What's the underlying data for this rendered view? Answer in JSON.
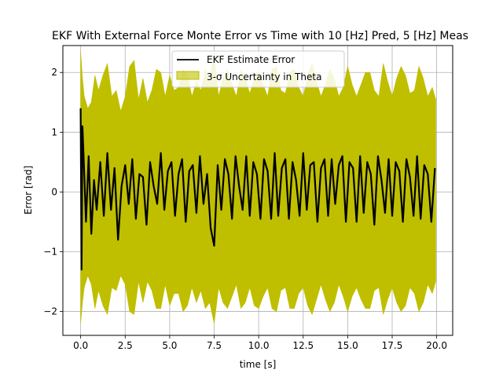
{
  "chart_data": {
    "type": "area",
    "title": "EKF With External Force Monte Error vs Time  with 10 [Hz] Pred, 5 [Hz] Meas",
    "xlabel": "time [s]",
    "ylabel": "Error [rad]",
    "xlim": [
      -1.0,
      20.9
    ],
    "ylim": [
      -2.4,
      2.45
    ],
    "xticks": [
      0.0,
      2.5,
      5.0,
      7.5,
      10.0,
      12.5,
      15.0,
      17.5,
      20.0
    ],
    "xtick_labels": [
      "0.0",
      "2.5",
      "5.0",
      "7.5",
      "10.0",
      "12.5",
      "15.0",
      "17.5",
      "20.0"
    ],
    "yticks": [
      -2,
      -1,
      0,
      1,
      2
    ],
    "ytick_labels": [
      "−2",
      "−1",
      "0",
      "1",
      "2"
    ],
    "grid": true,
    "legend_position": "top-center",
    "series": [
      {
        "name": "EKF Estimate Error",
        "kind": "line",
        "color": "#000000",
        "x": [
          0.0,
          0.05,
          0.1,
          0.2,
          0.3,
          0.45,
          0.6,
          0.75,
          0.9,
          1.1,
          1.3,
          1.5,
          1.7,
          1.9,
          2.1,
          2.3,
          2.5,
          2.7,
          2.9,
          3.1,
          3.3,
          3.5,
          3.7,
          3.9,
          4.1,
          4.3,
          4.5,
          4.7,
          4.9,
          5.1,
          5.3,
          5.5,
          5.7,
          5.9,
          6.1,
          6.3,
          6.5,
          6.7,
          6.9,
          7.1,
          7.3,
          7.5,
          7.7,
          7.9,
          8.1,
          8.3,
          8.5,
          8.7,
          8.9,
          9.1,
          9.3,
          9.5,
          9.7,
          9.9,
          10.1,
          10.3,
          10.5,
          10.7,
          10.9,
          11.1,
          11.3,
          11.5,
          11.7,
          11.9,
          12.1,
          12.3,
          12.5,
          12.7,
          12.9,
          13.1,
          13.3,
          13.5,
          13.7,
          13.9,
          14.1,
          14.3,
          14.5,
          14.7,
          14.9,
          15.1,
          15.3,
          15.5,
          15.7,
          15.9,
          16.1,
          16.3,
          16.5,
          16.7,
          16.9,
          17.1,
          17.3,
          17.5,
          17.7,
          17.9,
          18.1,
          18.3,
          18.5,
          18.7,
          18.9,
          19.1,
          19.3,
          19.5,
          19.7,
          19.9
        ],
        "y": [
          1.4,
          -1.3,
          1.1,
          0.3,
          -0.5,
          0.6,
          -0.7,
          0.2,
          -0.3,
          0.5,
          -0.4,
          0.65,
          -0.3,
          0.4,
          -0.8,
          0.1,
          0.45,
          -0.2,
          0.55,
          -0.45,
          0.3,
          0.25,
          -0.55,
          0.5,
          0.1,
          -0.2,
          0.65,
          -0.3,
          0.35,
          0.5,
          -0.4,
          0.3,
          0.55,
          -0.5,
          0.35,
          0.45,
          -0.35,
          0.6,
          -0.2,
          0.3,
          -0.6,
          -0.9,
          0.45,
          -0.3,
          0.55,
          0.3,
          -0.45,
          0.6,
          0.1,
          -0.3,
          0.6,
          -0.4,
          0.5,
          0.3,
          -0.45,
          0.55,
          0.35,
          -0.45,
          0.65,
          -0.4,
          0.4,
          0.55,
          -0.45,
          0.5,
          0.2,
          -0.4,
          0.65,
          -0.3,
          0.45,
          0.5,
          -0.5,
          0.4,
          0.55,
          -0.4,
          0.55,
          -0.2,
          0.45,
          0.6,
          -0.5,
          0.5,
          0.4,
          -0.5,
          0.6,
          -0.35,
          0.5,
          0.3,
          -0.55,
          0.6,
          0.2,
          -0.35,
          0.55,
          -0.4,
          0.5,
          0.35,
          -0.5,
          0.55,
          0.25,
          -0.4,
          0.6,
          -0.45,
          0.45,
          0.3,
          -0.5,
          0.4
        ]
      },
      {
        "name": "3-σ Uncertainty in Theta",
        "kind": "band",
        "color": "#bfbf00",
        "x": [
          0.0,
          0.1,
          0.2,
          0.4,
          0.6,
          0.8,
          1.0,
          1.25,
          1.5,
          1.75,
          2.0,
          2.25,
          2.5,
          2.75,
          3.0,
          3.25,
          3.5,
          3.75,
          4.0,
          4.25,
          4.5,
          4.75,
          5.0,
          5.25,
          5.5,
          5.75,
          6.0,
          6.25,
          6.5,
          6.75,
          7.0,
          7.25,
          7.5,
          7.75,
          8.0,
          8.25,
          8.5,
          8.75,
          9.0,
          9.25,
          9.5,
          9.75,
          10.0,
          10.25,
          10.5,
          10.75,
          11.0,
          11.25,
          11.5,
          11.75,
          12.0,
          12.25,
          12.5,
          12.75,
          13.0,
          13.25,
          13.5,
          13.75,
          14.0,
          14.25,
          14.5,
          14.75,
          15.0,
          15.25,
          15.5,
          15.75,
          16.0,
          16.25,
          16.5,
          16.75,
          17.0,
          17.25,
          17.5,
          17.75,
          18.0,
          18.25,
          18.5,
          18.75,
          19.0,
          19.25,
          19.5,
          19.75,
          19.95
        ],
        "upper": [
          2.35,
          1.9,
          1.6,
          1.4,
          1.5,
          1.95,
          1.7,
          1.95,
          2.15,
          1.6,
          1.7,
          1.35,
          1.6,
          2.1,
          2.2,
          1.55,
          1.9,
          1.5,
          1.7,
          2.05,
          2.0,
          1.6,
          1.95,
          1.7,
          1.75,
          2.05,
          1.95,
          1.6,
          1.85,
          1.7,
          2.05,
          1.9,
          2.3,
          1.6,
          1.9,
          2.05,
          1.8,
          1.6,
          2.05,
          1.9,
          1.65,
          1.9,
          2.0,
          1.8,
          1.6,
          2.05,
          2.1,
          1.7,
          1.65,
          2.0,
          2.05,
          1.75,
          1.6,
          1.95,
          2.15,
          1.85,
          1.6,
          1.8,
          2.05,
          1.9,
          1.6,
          1.75,
          2.1,
          1.8,
          1.6,
          1.8,
          2.0,
          2.0,
          1.7,
          1.6,
          2.15,
          1.85,
          1.6,
          1.9,
          2.1,
          1.95,
          1.65,
          1.7,
          2.1,
          1.9,
          1.6,
          1.75,
          1.55
        ],
        "lower": [
          -2.2,
          -1.85,
          -1.6,
          -1.4,
          -1.55,
          -1.95,
          -1.65,
          -1.9,
          -2.05,
          -1.6,
          -1.65,
          -1.4,
          -1.55,
          -2.0,
          -2.05,
          -1.5,
          -1.85,
          -1.5,
          -1.65,
          -1.95,
          -1.95,
          -1.55,
          -1.9,
          -1.7,
          -1.7,
          -2.0,
          -1.9,
          -1.6,
          -1.85,
          -1.65,
          -1.95,
          -1.85,
          -2.2,
          -1.6,
          -1.85,
          -1.95,
          -1.75,
          -1.55,
          -1.95,
          -1.85,
          -1.6,
          -1.9,
          -1.95,
          -1.75,
          -1.6,
          -1.95,
          -2.0,
          -1.65,
          -1.6,
          -1.95,
          -1.95,
          -1.7,
          -1.6,
          -1.9,
          -2.05,
          -1.8,
          -1.55,
          -1.8,
          -2.0,
          -1.85,
          -1.55,
          -1.75,
          -2.0,
          -1.75,
          -1.6,
          -1.8,
          -1.95,
          -1.95,
          -1.65,
          -1.6,
          -2.05,
          -1.8,
          -1.6,
          -1.85,
          -2.0,
          -1.9,
          -1.6,
          -1.7,
          -2.0,
          -1.85,
          -1.55,
          -1.7,
          -1.5
        ]
      }
    ]
  }
}
